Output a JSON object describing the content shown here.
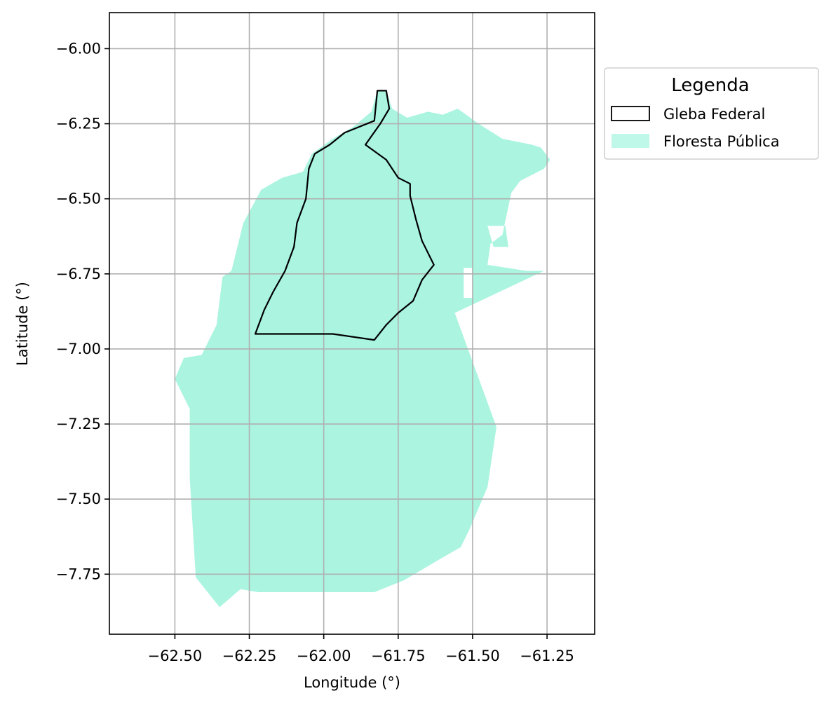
{
  "chart_data": {
    "type": "map",
    "xlabel": "Longitude (°)",
    "ylabel": "Latitude (°)",
    "xlim": [
      -62.72,
      -61.09
    ],
    "ylim": [
      -7.95,
      -5.88
    ],
    "xticks": [
      -62.5,
      -62.25,
      -62.0,
      -61.75,
      -61.5,
      -61.25
    ],
    "xtick_labels": [
      "−62.50",
      "−62.25",
      "−62.00",
      "−61.75",
      "−61.50",
      "−61.25"
    ],
    "yticks": [
      -6.0,
      -6.25,
      -6.5,
      -6.75,
      -7.0,
      -7.25,
      -7.5,
      -7.75
    ],
    "ytick_labels": [
      "−6.00",
      "−6.25",
      "−6.50",
      "−6.75",
      "−7.00",
      "−7.25",
      "−7.50",
      "−7.75"
    ],
    "grid": true,
    "legend": {
      "title": "Legenda",
      "placement": "outside-right-top",
      "entries": [
        {
          "label": "Gleba Federal",
          "style": "outline",
          "edge_color": "#000000"
        },
        {
          "label": "Floresta Pública",
          "style": "fill",
          "fill_color": "#aaf4e0"
        }
      ]
    },
    "colors": {
      "floresta_fill": "#aaf4e0",
      "gleba_edge": "#000000",
      "grid": "#b0b0b0"
    },
    "layers": [
      {
        "name": "Floresta Pública",
        "polygons": [
          [
            [
              -62.5,
              -7.1
            ],
            [
              -62.47,
              -7.03
            ],
            [
              -62.41,
              -7.02
            ],
            [
              -62.36,
              -6.92
            ],
            [
              -62.34,
              -6.76
            ],
            [
              -62.31,
              -6.74
            ],
            [
              -62.27,
              -6.58
            ],
            [
              -62.21,
              -6.47
            ],
            [
              -62.14,
              -6.43
            ],
            [
              -62.07,
              -6.41
            ],
            [
              -62.04,
              -6.35
            ],
            [
              -61.97,
              -6.3
            ],
            [
              -61.9,
              -6.26
            ],
            [
              -61.84,
              -6.21
            ],
            [
              -61.82,
              -6.14
            ],
            [
              -61.79,
              -6.14
            ],
            [
              -61.77,
              -6.2
            ],
            [
              -61.72,
              -6.23
            ],
            [
              -61.65,
              -6.21
            ],
            [
              -61.6,
              -6.22
            ],
            [
              -61.55,
              -6.2
            ],
            [
              -61.48,
              -6.25
            ],
            [
              -61.4,
              -6.3
            ],
            [
              -61.3,
              -6.32
            ],
            [
              -61.27,
              -6.33
            ],
            [
              -61.24,
              -6.37
            ],
            [
              -61.26,
              -6.4
            ],
            [
              -61.34,
              -6.44
            ],
            [
              -61.37,
              -6.48
            ],
            [
              -61.4,
              -6.62
            ],
            [
              -61.44,
              -6.65
            ],
            [
              -61.45,
              -6.72
            ],
            [
              -61.32,
              -6.74
            ],
            [
              -61.26,
              -6.74
            ],
            [
              -61.56,
              -6.88
            ],
            [
              -61.42,
              -7.26
            ],
            [
              -61.45,
              -7.46
            ],
            [
              -61.51,
              -7.6
            ],
            [
              -61.54,
              -7.66
            ],
            [
              -61.61,
              -7.7
            ],
            [
              -61.73,
              -7.77
            ],
            [
              -61.83,
              -7.81
            ],
            [
              -62.22,
              -7.81
            ],
            [
              -62.28,
              -7.8
            ],
            [
              -62.35,
              -7.86
            ],
            [
              -62.43,
              -7.76
            ],
            [
              -62.45,
              -7.43
            ],
            [
              -62.45,
              -7.2
            ],
            [
              -62.5,
              -7.1
            ]
          ]
        ],
        "holes": [
          [
            [
              -61.53,
              -6.73
            ],
            [
              -61.53,
              -6.83
            ],
            [
              -61.5,
              -6.83
            ],
            [
              -61.5,
              -6.73
            ],
            [
              -61.53,
              -6.73
            ]
          ],
          [
            [
              -61.45,
              -6.59
            ],
            [
              -61.43,
              -6.66
            ],
            [
              -61.38,
              -6.66
            ],
            [
              -61.39,
              -6.59
            ],
            [
              -61.45,
              -6.59
            ]
          ]
        ]
      },
      {
        "name": "Gleba Federal",
        "polygons": [
          [
            [
              -62.23,
              -6.95
            ],
            [
              -61.97,
              -6.95
            ],
            [
              -61.83,
              -6.97
            ],
            [
              -61.79,
              -6.92
            ],
            [
              -61.75,
              -6.88
            ],
            [
              -61.7,
              -6.84
            ],
            [
              -61.67,
              -6.77
            ],
            [
              -61.63,
              -6.72
            ],
            [
              -61.67,
              -6.64
            ],
            [
              -61.69,
              -6.57
            ],
            [
              -61.71,
              -6.49
            ],
            [
              -61.71,
              -6.45
            ],
            [
              -61.75,
              -6.43
            ],
            [
              -61.79,
              -6.37
            ],
            [
              -61.86,
              -6.32
            ],
            [
              -61.81,
              -6.25
            ],
            [
              -61.78,
              -6.2
            ],
            [
              -61.79,
              -6.14
            ],
            [
              -61.82,
              -6.14
            ],
            [
              -61.83,
              -6.24
            ],
            [
              -61.93,
              -6.28
            ],
            [
              -61.98,
              -6.32
            ],
            [
              -62.03,
              -6.35
            ],
            [
              -62.05,
              -6.4
            ],
            [
              -62.06,
              -6.5
            ],
            [
              -62.09,
              -6.58
            ],
            [
              -62.1,
              -6.66
            ],
            [
              -62.13,
              -6.74
            ],
            [
              -62.17,
              -6.81
            ],
            [
              -62.2,
              -6.87
            ],
            [
              -62.23,
              -6.95
            ]
          ]
        ]
      }
    ]
  }
}
